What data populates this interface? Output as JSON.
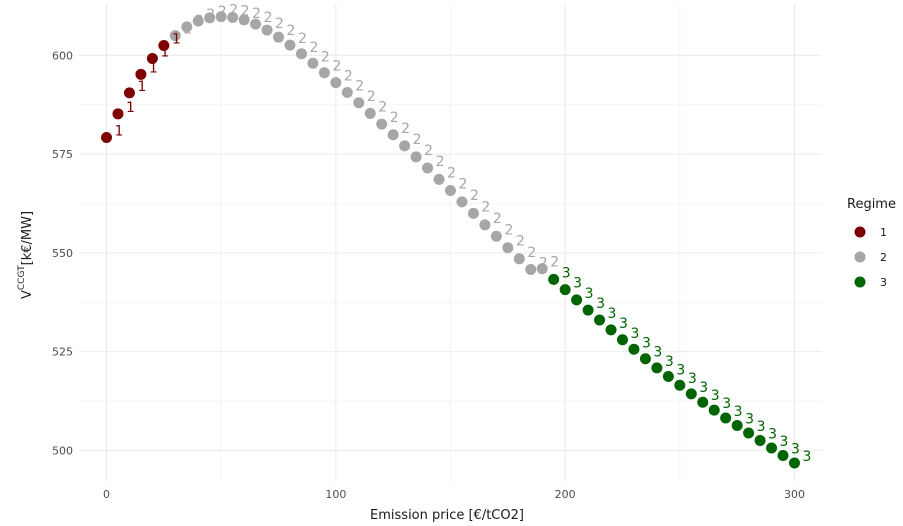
{
  "chart_data": {
    "type": "scatter",
    "title": "",
    "xlabel": "Emission price [€/tCO2]",
    "ylabel": {
      "base": "V",
      "superscript": "CCGT",
      "unit": "[k€/MW]"
    },
    "xlim": [
      -12,
      312
    ],
    "ylim": [
      492,
      613
    ],
    "x_ticks": [
      0,
      100,
      200,
      300
    ],
    "y_ticks": [
      500,
      525,
      550,
      575,
      600
    ],
    "grid": true,
    "legend": {
      "title": "Regime",
      "position": "right",
      "entries": [
        {
          "label": "1",
          "color": "#7f0000"
        },
        {
          "label": "2",
          "color": "#a6a6a6"
        },
        {
          "label": "3",
          "color": "#006400"
        }
      ]
    },
    "series": [
      {
        "regime": "1",
        "color": "#7f0000",
        "x": [
          0,
          5,
          10,
          15,
          20,
          25
        ],
        "y": [
          579.2,
          585.2,
          590.5,
          595.2,
          599.2,
          602.5
        ]
      },
      {
        "regime": "2",
        "color": "#a6a6a6",
        "x": [
          30,
          35,
          40,
          45,
          50,
          55,
          60,
          65,
          70,
          75,
          80,
          85,
          90,
          95,
          100,
          105,
          110,
          115,
          120,
          125,
          130,
          135,
          140,
          145,
          150,
          155,
          160,
          165,
          170,
          175,
          180,
          185,
          190
        ],
        "y": [
          605.0,
          607.2,
          608.7,
          609.5,
          609.8,
          609.6,
          609.0,
          607.9,
          606.4,
          604.6,
          602.6,
          600.4,
          598.0,
          595.6,
          593.1,
          590.6,
          588.0,
          585.3,
          582.6,
          579.9,
          577.1,
          574.3,
          571.5,
          568.6,
          565.8,
          562.9,
          560.0,
          557.1,
          554.2,
          551.3,
          548.5,
          545.8,
          546.0
        ]
      },
      {
        "regime": "3",
        "color": "#006400",
        "x": [
          195,
          200,
          205,
          210,
          215,
          220,
          225,
          230,
          235,
          240,
          245,
          250,
          255,
          260,
          265,
          270,
          275,
          280,
          285,
          290,
          295,
          300
        ],
        "y": [
          543.3,
          540.7,
          538.1,
          535.5,
          533.0,
          530.5,
          528.0,
          525.6,
          523.2,
          520.9,
          518.7,
          516.5,
          514.3,
          512.2,
          510.2,
          508.2,
          506.3,
          504.4,
          502.5,
          500.6,
          498.7,
          496.8
        ]
      }
    ]
  }
}
